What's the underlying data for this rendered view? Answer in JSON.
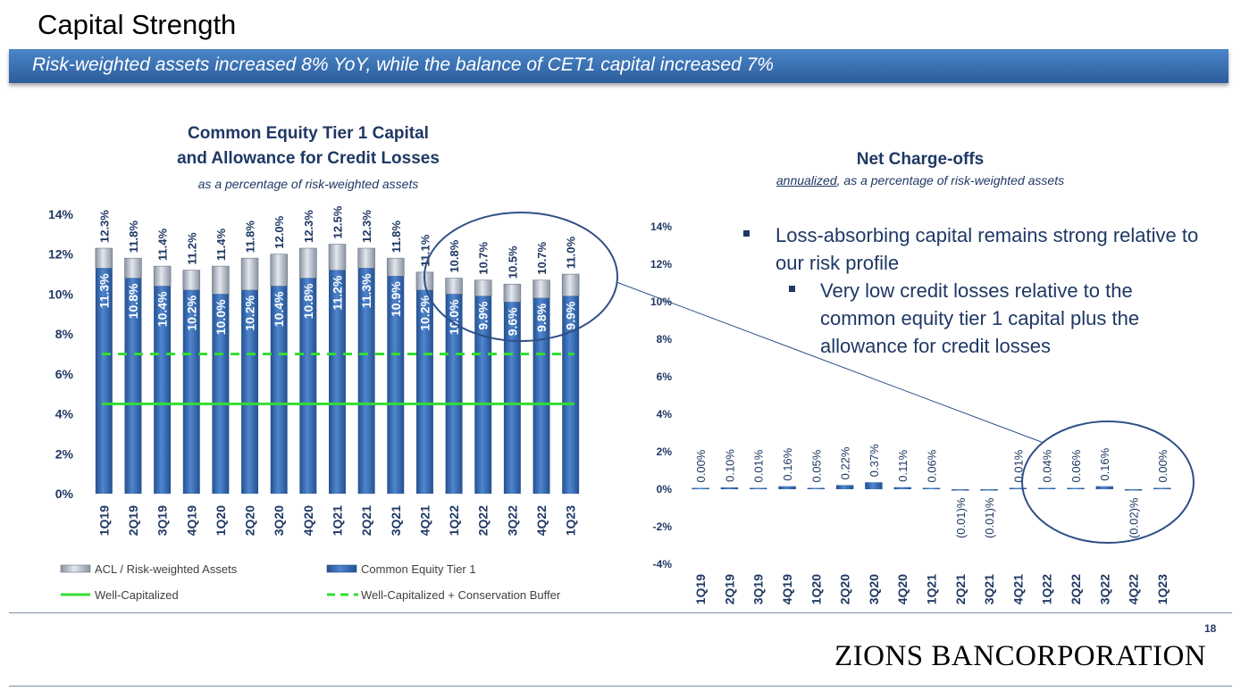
{
  "page": {
    "title": "Capital Strength",
    "banner": "Risk-weighted assets increased 8% YoY, while the balance of CET1 capital increased 7%",
    "page_number": "18",
    "logo_text": "ZIONS BANCORPORATION"
  },
  "bullets": {
    "main": "Loss-absorbing capital remains strong relative to our risk profile",
    "sub": "Very low credit losses relative to the common equity tier 1 capital plus the allowance for credit losses"
  },
  "chart_data": [
    {
      "type": "bar",
      "title_line1": "Common Equity Tier 1 Capital",
      "title_line2": "and Allowance for Credit Losses",
      "subtitle": "as a percentage of risk-weighted assets",
      "categories": [
        "1Q19",
        "2Q19",
        "3Q19",
        "4Q19",
        "1Q20",
        "2Q20",
        "3Q20",
        "4Q20",
        "1Q21",
        "2Q21",
        "3Q21",
        "4Q21",
        "1Q22",
        "2Q22",
        "3Q22",
        "4Q22",
        "1Q23"
      ],
      "series": [
        {
          "name": "Common Equity Tier 1",
          "values": [
            11.3,
            10.8,
            10.4,
            10.2,
            10.0,
            10.2,
            10.4,
            10.8,
            11.2,
            11.3,
            10.9,
            10.2,
            10.0,
            9.9,
            9.6,
            9.8,
            9.9
          ],
          "labels": [
            "11.3%",
            "10.8%",
            "10.4%",
            "10.2%",
            "10.0%",
            "10.2%",
            "10.4%",
            "10.8%",
            "11.2%",
            "11.3%",
            "10.9%",
            "10.2%",
            "10.0%",
            "9.9%",
            "9.6%",
            "9.8%",
            "9.9%"
          ]
        },
        {
          "name": "ACL / Risk-weighted Assets",
          "totals": [
            12.3,
            11.8,
            11.4,
            11.2,
            11.4,
            11.8,
            12.0,
            12.3,
            12.5,
            12.3,
            11.8,
            11.1,
            10.8,
            10.7,
            10.5,
            10.7,
            11.0
          ],
          "labels": [
            "12.3%",
            "11.8%",
            "11.4%",
            "11.2%",
            "11.4%",
            "11.8%",
            "12.0%",
            "12.3%",
            "12.5%",
            "12.3%",
            "11.8%",
            "11.1%",
            "10.8%",
            "10.7%",
            "10.5%",
            "10.7%",
            "11.0%"
          ]
        }
      ],
      "reference_lines": [
        {
          "name": "Well-Capitalized",
          "value": 4.5,
          "style": "solid"
        },
        {
          "name": "Well-Capitalized + Conservation Buffer",
          "value": 7.0,
          "style": "dashed"
        }
      ],
      "yticks": [
        "0%",
        "2%",
        "4%",
        "6%",
        "8%",
        "10%",
        "12%",
        "14%"
      ],
      "ylim": [
        0,
        14
      ],
      "legend": [
        "ACL / Risk-weighted Assets",
        "Common Equity Tier 1",
        "Well-Capitalized",
        "Well-Capitalized + Conservation Buffer"
      ],
      "colors": {
        "cet1": "#3a6fb7",
        "acl": "#b9c0cc",
        "line": "#33dd33"
      }
    },
    {
      "type": "bar",
      "title": "Net Charge-offs",
      "subtitle_underlined": "annualized",
      "subtitle_rest": ", as a percentage of risk-weighted assets",
      "categories": [
        "1Q19",
        "2Q19",
        "3Q19",
        "4Q19",
        "1Q20",
        "2Q20",
        "3Q20",
        "4Q20",
        "1Q21",
        "2Q21",
        "3Q21",
        "4Q21",
        "1Q22",
        "2Q22",
        "3Q22",
        "4Q22",
        "1Q23"
      ],
      "values": [
        0.0,
        0.1,
        0.01,
        0.16,
        0.05,
        0.22,
        0.37,
        0.11,
        0.06,
        -0.01,
        -0.01,
        0.01,
        0.04,
        0.06,
        0.16,
        -0.02,
        0.0
      ],
      "labels": [
        "0.00%",
        "0.10%",
        "0.01%",
        "0.16%",
        "0.05%",
        "0.22%",
        "0.37%",
        "0.11%",
        "0.06%",
        "(0.01)%",
        "(0.01)%",
        "0.01%",
        "0.04%",
        "0.06%",
        "0.16%",
        "(0.02)%",
        "0.00%"
      ],
      "yticks": [
        "-4%",
        "-2%",
        "0%",
        "2%",
        "4%",
        "6%",
        "8%",
        "10%",
        "12%",
        "14%"
      ],
      "ylim": [
        -4,
        14
      ],
      "colors": {
        "bar": "#3a6fb7"
      }
    }
  ]
}
